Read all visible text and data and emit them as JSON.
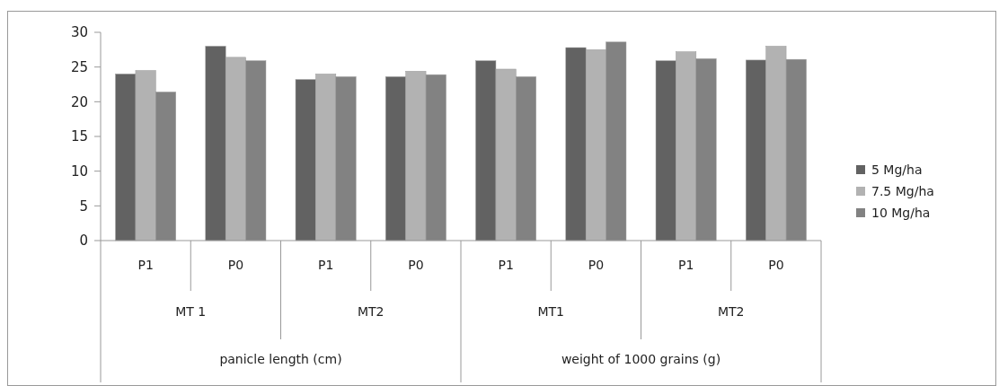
{
  "chart_data": {
    "type": "bar",
    "categories": [
      "P1",
      "P0",
      "P1",
      "P0",
      "P1",
      "P0",
      "P1",
      "P0"
    ],
    "annotations": [
      "MT 1",
      "MT2",
      "MT1",
      "MT2",
      "panicle length (cm)",
      "weight of 1000 grains (g)"
    ],
    "series": [
      {
        "name": "5 Mg/ha",
        "color": "#626262",
        "values": [
          24.0,
          28.0,
          23.2,
          23.6,
          25.9,
          27.8,
          25.9,
          26.0
        ]
      },
      {
        "name": "7.5 Mg/ha",
        "color": "#b2b2b2",
        "values": [
          24.5,
          26.4,
          24.0,
          24.4,
          24.7,
          27.5,
          27.2,
          28.0
        ]
      },
      {
        "name": "10 Mg/ha",
        "color": "#828282",
        "values": [
          21.4,
          25.9,
          23.6,
          23.9,
          23.6,
          28.6,
          26.2,
          26.1
        ]
      }
    ],
    "ylim": [
      0,
      30
    ],
    "yticks": [
      0,
      5,
      10,
      15,
      20,
      25,
      30
    ],
    "grid": false,
    "legend": "right"
  }
}
